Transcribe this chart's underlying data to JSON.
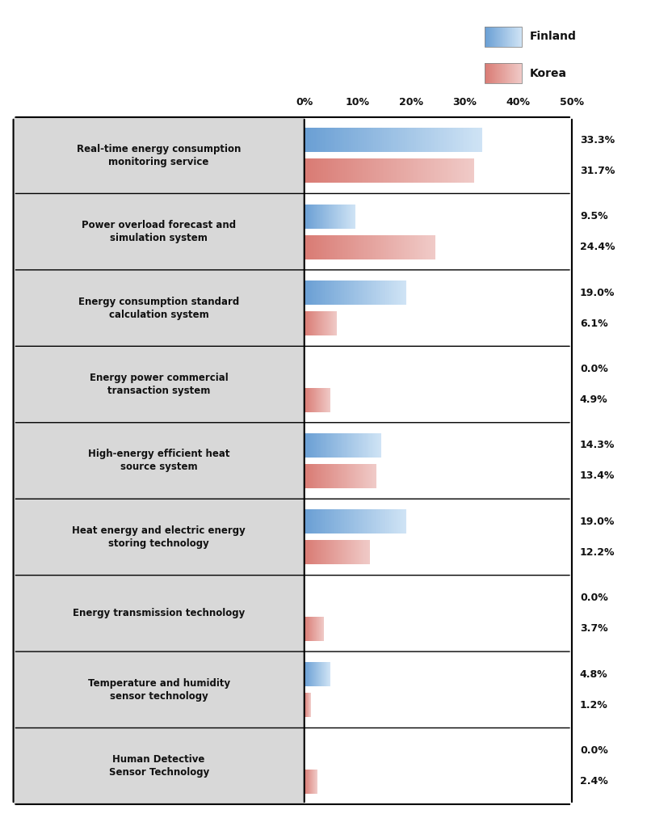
{
  "categories": [
    "Real-time energy consumption\nmonitoring service",
    "Power overload forecast and\nsimulation system",
    "Energy consumption standard\ncalculation system",
    "Energy power commercial\ntransaction system",
    "High-energy efficient heat\nsource system",
    "Heat energy and electric energy\nstoring technology",
    "Energy transmission technology",
    "Temperature and humidity\nsensor technology",
    "Human Detective\nSensor Technology"
  ],
  "finland_values": [
    33.3,
    9.5,
    19.0,
    0.0,
    14.3,
    19.0,
    0.0,
    4.8,
    0.0
  ],
  "korea_values": [
    31.7,
    24.4,
    6.1,
    4.9,
    13.4,
    12.2,
    3.7,
    1.2,
    2.4
  ],
  "finland_color_start": "#6a9fd4",
  "finland_color_end": "#d0e4f5",
  "korea_color_start": "#d97b74",
  "korea_color_end": "#f0cbc8",
  "bg_color": "#d8d8d8",
  "bar_area_bg": "#ffffff",
  "label_color": "#111111",
  "value_color": "#111111",
  "border_color": "#000000",
  "xlim": [
    0,
    50
  ],
  "xticks": [
    0,
    10,
    20,
    30,
    40,
    50
  ],
  "xtick_labels": [
    "0%",
    "10%",
    "20%",
    "30%",
    "40%",
    "50%"
  ],
  "legend_finland": "Finland",
  "legend_korea": "Korea"
}
